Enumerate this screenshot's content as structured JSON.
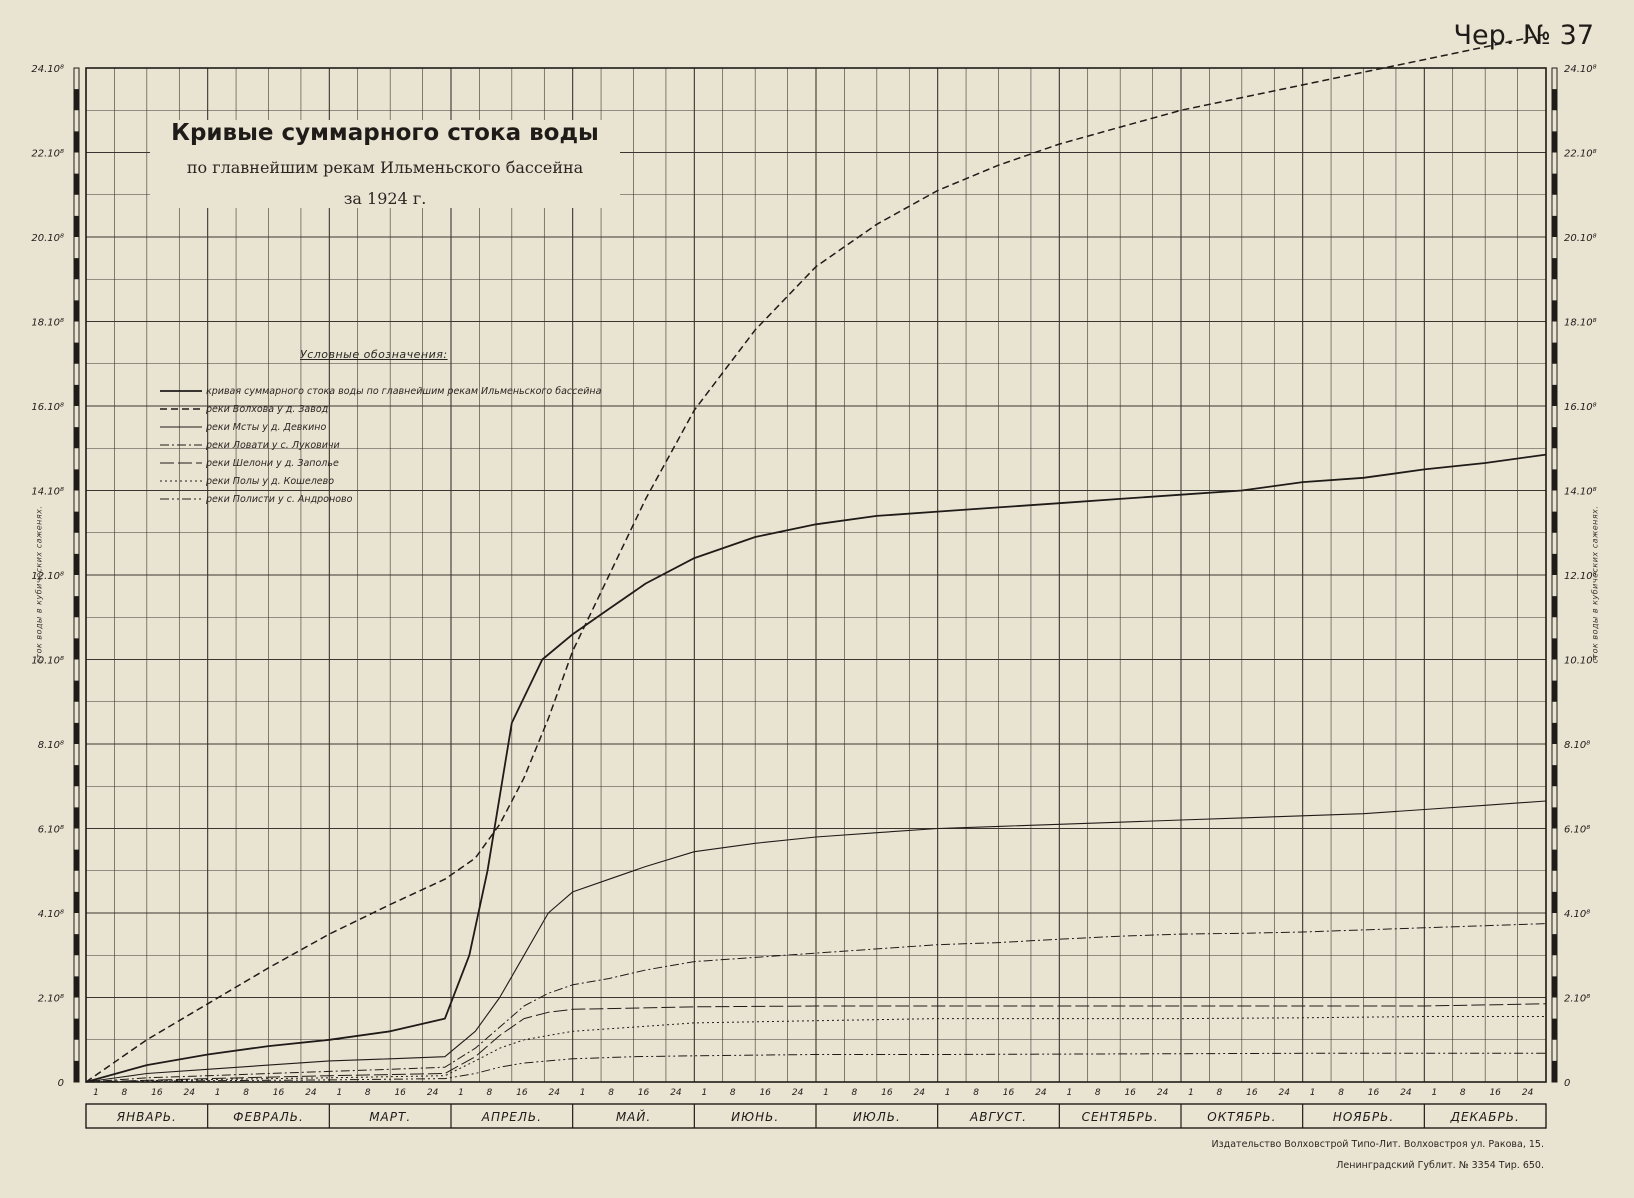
{
  "sheet_number": "Чер. № 37",
  "title": {
    "main": "Кривые суммарного стока воды",
    "sub": "по главнейшим рекам Ильменьского бассейна",
    "year": "за 1924 г."
  },
  "legend_title": "Условные обозначения:",
  "axis_label": "сток воды в кубических саженях.",
  "publisher": {
    "line1": "Издательство Волховстрой Типо-Лит. Волховстроя ул. Ракова, 15.",
    "line2": "Ленинградский Гублит. № 3354 Тир. 650."
  },
  "colors": {
    "paper": "#e9e4d2",
    "grid": "#3a3530",
    "ink": "#1f1b18"
  },
  "chart_data": {
    "type": "line",
    "title": "Кривые суммарного стока воды",
    "xlabel": "",
    "ylabel": "сток воды в кубических саженях.",
    "months": [
      "ЯНВАРЬ.",
      "ФЕВРАЛЬ.",
      "МАРТ.",
      "АПРЕЛЬ.",
      "МАЙ.",
      "ИЮНЬ.",
      "ИЮЛЬ.",
      "АВГУСТ.",
      "СЕНТЯБРЬ.",
      "ОКТЯБРЬ.",
      "НОЯБРЬ.",
      "ДЕКАБРЬ."
    ],
    "day_ticks": [
      "1",
      "8",
      "16",
      "24"
    ],
    "x_unit": "months since 1 January 1924",
    "xlim": [
      0,
      12
    ],
    "ylim": [
      0,
      24
    ],
    "y_ticks": [
      0,
      2,
      4,
      6,
      8,
      10,
      12,
      14,
      16,
      18,
      20,
      22,
      24
    ],
    "y_tick_labels": [
      "0",
      "2.10⁸",
      "4.10⁸",
      "6.10⁸",
      "8.10⁸",
      "10.10⁸",
      "12.10⁸",
      "14.10⁸",
      "16.10⁸",
      "18.10⁸",
      "20.10⁸",
      "22.10⁸",
      "24.10⁸"
    ],
    "grid": true,
    "series": [
      {
        "name": "кривая суммарного стока воды по главнейшим рекам Ильменьского бассейна",
        "style": "solid",
        "width": 1.8,
        "x": [
          0,
          0.5,
          1,
          1.5,
          2,
          2.5,
          2.95,
          3.15,
          3.3,
          3.5,
          3.75,
          4,
          4.3,
          4.6,
          5,
          5.5,
          6,
          6.5,
          7,
          7.5,
          8,
          8.5,
          9,
          9.5,
          10,
          10.5,
          11,
          11.5,
          12
        ],
        "y": [
          0,
          0.4,
          0.65,
          0.85,
          1.0,
          1.2,
          1.5,
          3.0,
          5.0,
          8.5,
          10.0,
          10.6,
          11.2,
          11.8,
          12.4,
          12.9,
          13.2,
          13.4,
          13.5,
          13.6,
          13.7,
          13.8,
          13.9,
          14.0,
          14.2,
          14.3,
          14.5,
          14.65,
          14.85
        ]
      },
      {
        "name": "реки Волхова у д. Завод",
        "style": "dashed",
        "width": 1.5,
        "x": [
          0,
          0.5,
          1,
          1.5,
          2,
          2.5,
          2.95,
          3.2,
          3.4,
          3.6,
          3.8,
          4,
          4.3,
          4.6,
          5,
          5.5,
          6,
          6.5,
          7,
          7.5,
          8,
          8.5,
          9,
          9.5,
          10,
          10.5,
          11,
          11.5,
          12
        ],
        "y": [
          0,
          1.0,
          1.85,
          2.7,
          3.5,
          4.2,
          4.8,
          5.3,
          6.1,
          7.2,
          8.6,
          10.2,
          12.0,
          13.8,
          15.9,
          17.8,
          19.3,
          20.3,
          21.1,
          21.7,
          22.2,
          22.6,
          23.0,
          23.3,
          23.6,
          23.9,
          24.2,
          24.5,
          24.8
        ]
      },
      {
        "name": "реки Мсты у д. Девкино",
        "style": "solid",
        "width": 1.1,
        "x": [
          0,
          0.5,
          1,
          1.5,
          2,
          2.5,
          2.95,
          3.2,
          3.4,
          3.6,
          3.8,
          4,
          4.3,
          4.6,
          5,
          5.5,
          6,
          6.5,
          7,
          7.5,
          8,
          8.5,
          9,
          9.5,
          10,
          10.5,
          11,
          11.5,
          12
        ],
        "y": [
          0,
          0.2,
          0.3,
          0.4,
          0.5,
          0.55,
          0.6,
          1.2,
          2.0,
          3.0,
          4.0,
          4.5,
          4.8,
          5.1,
          5.45,
          5.65,
          5.8,
          5.9,
          6.0,
          6.05,
          6.1,
          6.15,
          6.2,
          6.25,
          6.3,
          6.35,
          6.45,
          6.55,
          6.65
        ]
      },
      {
        "name": "реки Ловати у с. Луковичи",
        "style": "dashdot",
        "width": 1.0,
        "x": [
          0,
          0.5,
          1,
          1.5,
          2,
          2.5,
          2.95,
          3.2,
          3.4,
          3.6,
          3.8,
          4,
          4.3,
          4.6,
          5,
          5.5,
          6,
          6.5,
          7,
          7.5,
          8,
          8.5,
          9,
          9.5,
          10,
          10.5,
          11,
          11.5,
          12
        ],
        "y": [
          0,
          0.1,
          0.15,
          0.2,
          0.25,
          0.3,
          0.35,
          0.8,
          1.3,
          1.8,
          2.1,
          2.3,
          2.45,
          2.65,
          2.85,
          2.95,
          3.05,
          3.15,
          3.25,
          3.3,
          3.38,
          3.45,
          3.5,
          3.52,
          3.55,
          3.6,
          3.65,
          3.7,
          3.75
        ]
      },
      {
        "name": "реки Шелони у д. Заполье",
        "style": "longdash",
        "width": 1.0,
        "x": [
          0,
          1,
          2,
          2.95,
          3.2,
          3.4,
          3.6,
          3.8,
          4,
          4.5,
          5,
          6,
          7,
          8,
          9,
          10,
          11,
          12
        ],
        "y": [
          0,
          0.08,
          0.15,
          0.2,
          0.6,
          1.1,
          1.5,
          1.65,
          1.72,
          1.75,
          1.78,
          1.8,
          1.8,
          1.8,
          1.8,
          1.8,
          1.8,
          1.85
        ]
      },
      {
        "name": "реки Полы у д. Кошелево",
        "style": "dotted",
        "width": 1.0,
        "x": [
          0,
          1,
          2,
          2.95,
          3.2,
          3.4,
          3.6,
          3.8,
          4,
          4.5,
          5,
          6,
          7,
          8,
          9,
          10,
          11,
          12
        ],
        "y": [
          0,
          0.06,
          0.1,
          0.15,
          0.5,
          0.8,
          1.0,
          1.1,
          1.2,
          1.3,
          1.4,
          1.45,
          1.5,
          1.5,
          1.5,
          1.52,
          1.55,
          1.55
        ]
      },
      {
        "name": "реки Полисти у с. Андроново",
        "style": "dashdotdot",
        "width": 1.0,
        "x": [
          0,
          1,
          2,
          2.95,
          3.2,
          3.4,
          3.6,
          3.8,
          4,
          4.5,
          5,
          6,
          7,
          8,
          9,
          10,
          11,
          12
        ],
        "y": [
          0,
          0.03,
          0.05,
          0.08,
          0.2,
          0.35,
          0.45,
          0.5,
          0.55,
          0.6,
          0.62,
          0.65,
          0.65,
          0.66,
          0.67,
          0.68,
          0.68,
          0.68
        ]
      }
    ]
  }
}
